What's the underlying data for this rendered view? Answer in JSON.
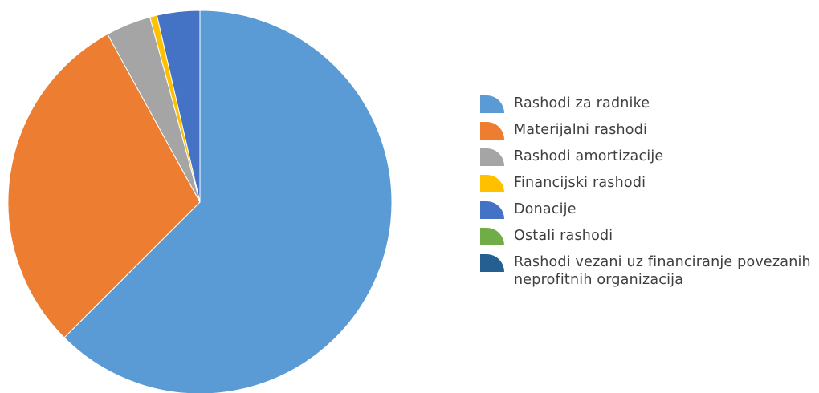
{
  "chart_data": {
    "type": "pie",
    "title": "",
    "legend_position": "right",
    "series": [
      {
        "name": "Rashodi za radnike",
        "value": 62.5,
        "color": "#5b9bd5"
      },
      {
        "name": "Materijalni rashodi",
        "value": 29.5,
        "color": "#ed7d31"
      },
      {
        "name": "Rashodi amortizacije",
        "value": 3.8,
        "color": "#a5a5a5"
      },
      {
        "name": "Financijski rashodi",
        "value": 0.6,
        "color": "#ffc000"
      },
      {
        "name": "Donacije",
        "value": 3.6,
        "color": "#4472c4"
      },
      {
        "name": "Ostali rashodi",
        "value": 0.0,
        "color": "#70ad47"
      },
      {
        "name": "Rashodi vezani uz financiranje povezanih neprofitnih organizacija",
        "value": 0.0,
        "color": "#255e91"
      }
    ]
  }
}
